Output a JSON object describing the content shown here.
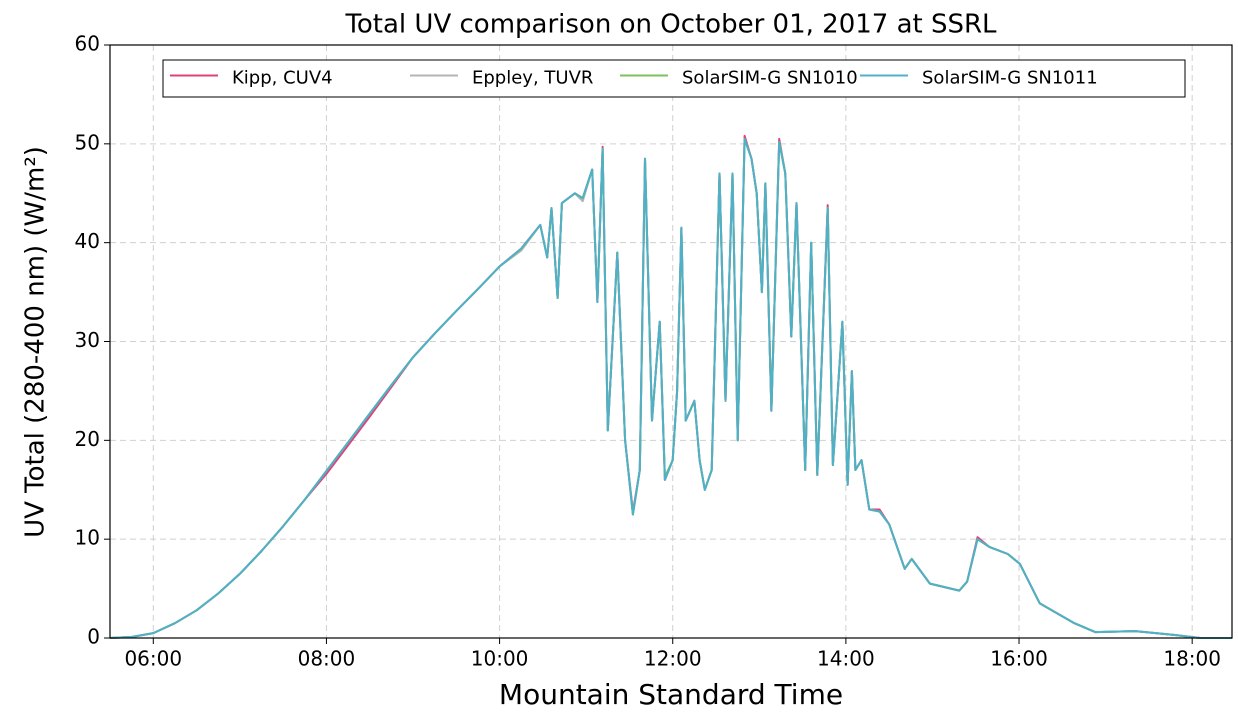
{
  "chart_data": {
    "type": "line",
    "title": "Total UV comparison on October 01, 2017 at SSRL",
    "xlabel": "Mountain Standard Time",
    "ylabel": "UV Total (280-400 nm) (W/m²)",
    "x": [
      5.5,
      5.75,
      6.0,
      6.25,
      6.5,
      6.75,
      7.0,
      7.25,
      7.5,
      7.75,
      8.0,
      8.25,
      8.5,
      8.75,
      9.0,
      9.25,
      9.5,
      9.75,
      10.0,
      10.25,
      10.47,
      10.55,
      10.6,
      10.67,
      10.72,
      10.87,
      10.96,
      11.07,
      11.13,
      11.19,
      11.25,
      11.36,
      11.45,
      11.54,
      11.62,
      11.68,
      11.76,
      11.85,
      11.91,
      12.0,
      12.05,
      12.1,
      12.15,
      12.25,
      12.31,
      12.37,
      12.45,
      12.54,
      12.61,
      12.69,
      12.75,
      12.83,
      12.91,
      12.97,
      13.03,
      13.07,
      13.14,
      13.23,
      13.3,
      13.37,
      13.43,
      13.53,
      13.6,
      13.67,
      13.79,
      13.85,
      13.96,
      14.02,
      14.07,
      14.11,
      14.18,
      14.27,
      14.39,
      14.5,
      14.68,
      14.76,
      14.97,
      15.31,
      15.4,
      15.52,
      15.66,
      15.87,
      16.01,
      16.24,
      16.64,
      16.88,
      17.34,
      17.8,
      18.09,
      18.46
    ],
    "series": [
      {
        "name": "Kipp, CUV4",
        "color": "#e0407a",
        "values": [
          0,
          0.1,
          0.5,
          1.5,
          2.8,
          4.5,
          6.5,
          8.8,
          11.3,
          14.0,
          16.6,
          19.5,
          22.4,
          25.4,
          28.4,
          30.8,
          33.1,
          35.3,
          37.6,
          39.4,
          41.8,
          38.5,
          43.5,
          34.4,
          44.0,
          45.0,
          44.5,
          47.4,
          34.0,
          49.7,
          21.0,
          39.0,
          20.0,
          12.8,
          17.0,
          48.5,
          22.0,
          32.0,
          16.0,
          18.0,
          25.0,
          41.5,
          22.0,
          24.0,
          18.0,
          15.0,
          17.0,
          47.0,
          24.0,
          47.0,
          20.0,
          50.8,
          48.5,
          45.0,
          35.0,
          46.0,
          23.0,
          50.5,
          47.0,
          30.5,
          44.0,
          17.0,
          40.0,
          16.5,
          43.8,
          17.5,
          32.0,
          15.5,
          27.0,
          17.0,
          18.0,
          13.0,
          13.0,
          11.5,
          7.0,
          8.0,
          5.5,
          4.8,
          5.7,
          10.2,
          9.2,
          8.5,
          7.5,
          3.5,
          1.5,
          0.6,
          0.7,
          0.3,
          0,
          0
        ]
      },
      {
        "name": "Eppley, TUVR",
        "color": "#b4b4b4",
        "values": [
          0,
          0.1,
          0.5,
          1.5,
          2.8,
          4.5,
          6.5,
          8.8,
          11.3,
          14.0,
          16.9,
          19.8,
          22.7,
          25.6,
          28.4,
          30.8,
          33.1,
          35.3,
          37.6,
          39.2,
          41.8,
          38.5,
          43.5,
          34.4,
          44.0,
          45.0,
          44.2,
          47.4,
          34.0,
          49.5,
          21.0,
          39.0,
          20.0,
          12.5,
          17.0,
          48.5,
          22.0,
          32.0,
          16.0,
          18.0,
          25.0,
          41.5,
          22.0,
          24.0,
          18.0,
          15.0,
          17.0,
          47.0,
          24.0,
          47.0,
          20.0,
          50.5,
          48.5,
          45.0,
          35.0,
          46.0,
          23.0,
          50.2,
          47.0,
          30.5,
          44.0,
          17.0,
          40.0,
          16.5,
          43.5,
          17.5,
          32.0,
          15.5,
          27.0,
          17.0,
          18.0,
          13.0,
          12.8,
          11.5,
          7.0,
          8.0,
          5.5,
          4.8,
          5.7,
          10.0,
          9.2,
          8.5,
          7.5,
          3.5,
          1.5,
          0.6,
          0.7,
          0.3,
          0,
          0
        ]
      },
      {
        "name": "SolarSIM-G SN1010",
        "color": "#7cc15e",
        "values": [
          0,
          0.1,
          0.5,
          1.5,
          2.8,
          4.5,
          6.5,
          8.8,
          11.3,
          14.0,
          16.9,
          19.8,
          22.7,
          25.6,
          28.4,
          30.8,
          33.1,
          35.3,
          37.6,
          39.4,
          41.8,
          38.5,
          43.5,
          34.4,
          44.0,
          45.0,
          44.5,
          47.4,
          34.0,
          49.5,
          21.0,
          39.0,
          20.0,
          12.5,
          17.0,
          48.5,
          22.0,
          32.0,
          16.3,
          18.0,
          25.0,
          41.5,
          22.0,
          24.0,
          18.0,
          15.0,
          17.0,
          47.0,
          24.0,
          47.0,
          20.0,
          50.5,
          48.5,
          45.0,
          35.0,
          46.0,
          23.0,
          50.2,
          47.0,
          30.5,
          44.0,
          17.0,
          40.0,
          16.5,
          43.5,
          17.5,
          32.0,
          15.5,
          27.0,
          17.0,
          18.0,
          13.0,
          12.8,
          11.5,
          7.0,
          8.0,
          5.5,
          4.8,
          5.7,
          10.0,
          9.2,
          8.5,
          7.5,
          3.5,
          1.5,
          0.6,
          0.7,
          0.3,
          0,
          0
        ]
      },
      {
        "name": "SolarSIM-G SN1011",
        "color": "#4fb0c8",
        "values": [
          0,
          0.1,
          0.5,
          1.5,
          2.8,
          4.5,
          6.5,
          8.8,
          11.3,
          14.0,
          16.9,
          19.8,
          22.7,
          25.6,
          28.4,
          30.8,
          33.1,
          35.3,
          37.6,
          39.4,
          41.8,
          38.5,
          43.5,
          34.4,
          44.0,
          45.0,
          44.5,
          47.4,
          34.0,
          49.5,
          21.0,
          39.0,
          20.0,
          12.5,
          17.0,
          48.5,
          22.0,
          32.0,
          16.0,
          18.0,
          25.0,
          41.5,
          22.0,
          24.0,
          18.0,
          15.0,
          17.0,
          47.0,
          24.0,
          47.0,
          20.0,
          50.5,
          48.5,
          45.0,
          35.0,
          46.0,
          23.0,
          50.2,
          47.0,
          30.5,
          44.0,
          17.0,
          40.0,
          16.5,
          43.5,
          17.5,
          32.0,
          15.5,
          27.0,
          17.0,
          18.0,
          13.0,
          12.8,
          11.5,
          7.0,
          8.0,
          5.5,
          4.8,
          5.7,
          10.0,
          9.2,
          8.5,
          7.5,
          3.5,
          1.5,
          0.6,
          0.7,
          0.3,
          0,
          0
        ]
      }
    ],
    "xlim": [
      5.5,
      18.46
    ],
    "xticks": [
      {
        "value": 6,
        "label": "06:00"
      },
      {
        "value": 8,
        "label": "08:00"
      },
      {
        "value": 10,
        "label": "10:00"
      },
      {
        "value": 12,
        "label": "12:00"
      },
      {
        "value": 14,
        "label": "14:00"
      },
      {
        "value": 16,
        "label": "16:00"
      },
      {
        "value": 18,
        "label": "18:00"
      }
    ],
    "ylim": [
      0,
      60
    ],
    "yticks": [
      0,
      10,
      20,
      30,
      40,
      50,
      60
    ],
    "grid": true,
    "legend": "top"
  }
}
